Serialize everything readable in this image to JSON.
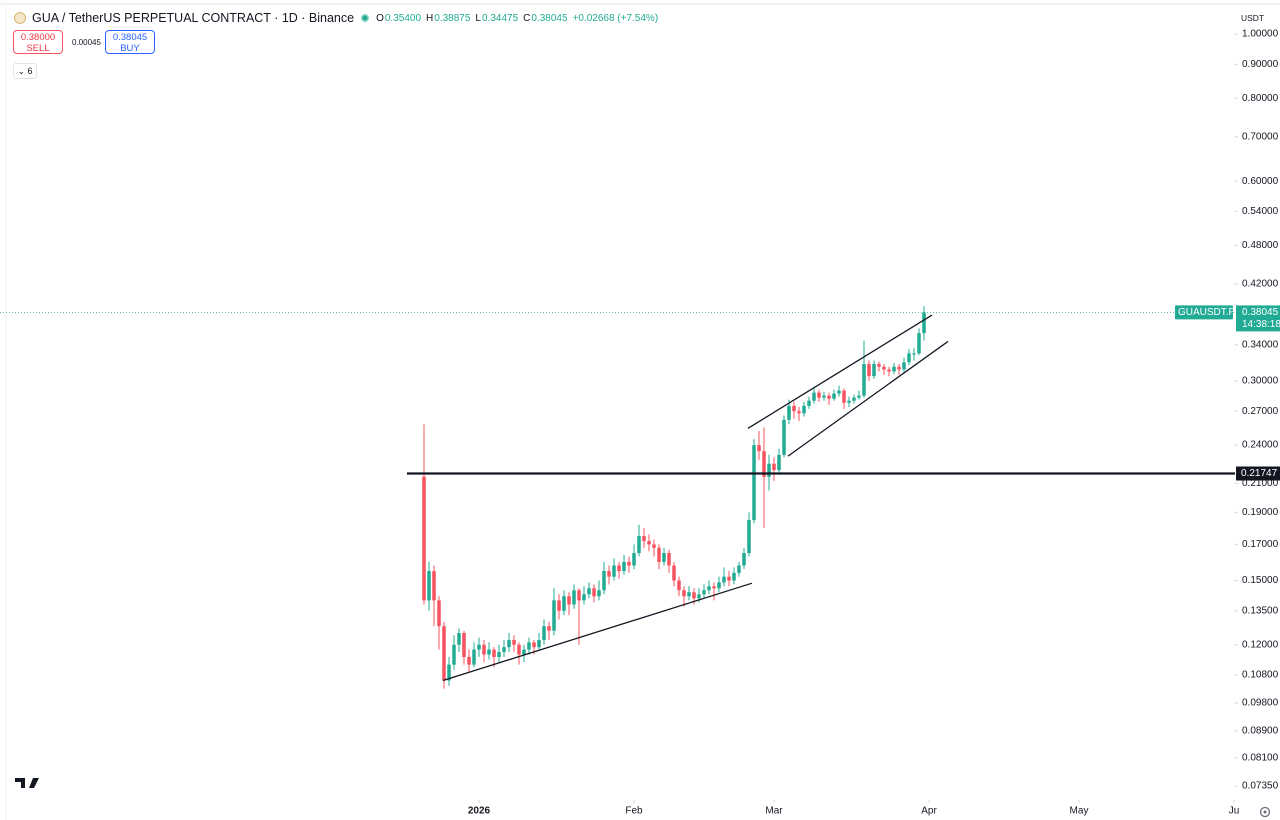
{
  "header": {
    "title": "GUA / TetherUS PERPETUAL CONTRACT · 1D · Binance",
    "open_label": "O",
    "open": "0.35400",
    "high_label": "H",
    "high": "0.38875",
    "low_label": "L",
    "low": "0.34475",
    "close_label": "C",
    "close": "0.38045",
    "change": "+0.02668 (+7.54%)",
    "sell_price": "0.38000",
    "sell": "SELL",
    "spread": "0.00045",
    "buy_price": "0.38045",
    "buy": "BUY",
    "indicators": "6"
  },
  "chart_data": {
    "type": "candlestick",
    "log_scale": true,
    "grid": false,
    "currency": "USDT",
    "up_color": "#22ab94",
    "down_color": "#f7525f",
    "open": [
      0.215,
      0.14,
      0.155,
      0.14,
      0.128,
      0.106,
      0.112,
      0.12,
      0.125,
      0.115,
      0.112,
      0.118,
      0.12,
      0.116,
      0.118,
      0.115,
      0.117,
      0.119,
      0.122,
      0.12,
      0.116,
      0.118,
      0.121,
      0.119,
      0.122,
      0.128,
      0.126,
      0.14,
      0.135,
      0.142,
      0.138,
      0.145,
      0.14,
      0.143,
      0.146,
      0.142,
      0.145,
      0.155,
      0.152,
      0.158,
      0.155,
      0.16,
      0.158,
      0.165,
      0.175,
      0.172,
      0.17,
      0.168,
      0.16,
      0.165,
      0.158,
      0.15,
      0.145,
      0.142,
      0.144,
      0.141,
      0.143,
      0.145,
      0.147,
      0.146,
      0.149,
      0.152,
      0.15,
      0.154,
      0.158,
      0.165,
      0.185,
      0.24,
      0.235,
      0.215,
      0.225,
      0.22,
      0.232,
      0.262,
      0.275,
      0.27,
      0.268,
      0.275,
      0.28,
      0.288,
      0.283,
      0.285,
      0.282,
      0.287,
      0.29,
      0.278,
      0.28,
      0.283,
      0.285,
      0.318,
      0.305,
      0.318,
      0.315,
      0.312,
      0.31,
      0.315,
      0.312,
      0.32,
      0.33,
      0.33,
      0.354
    ],
    "high": [
      0.258,
      0.16,
      0.158,
      0.142,
      0.13,
      0.115,
      0.124,
      0.127,
      0.126,
      0.118,
      0.121,
      0.123,
      0.122,
      0.121,
      0.119,
      0.12,
      0.122,
      0.125,
      0.124,
      0.121,
      0.12,
      0.123,
      0.122,
      0.125,
      0.131,
      0.13,
      0.146,
      0.143,
      0.145,
      0.144,
      0.148,
      0.146,
      0.147,
      0.149,
      0.148,
      0.15,
      0.16,
      0.158,
      0.162,
      0.16,
      0.164,
      0.163,
      0.17,
      0.182,
      0.18,
      0.176,
      0.173,
      0.17,
      0.168,
      0.167,
      0.16,
      0.152,
      0.147,
      0.147,
      0.146,
      0.146,
      0.148,
      0.15,
      0.149,
      0.152,
      0.157,
      0.155,
      0.157,
      0.16,
      0.168,
      0.19,
      0.245,
      0.252,
      0.255,
      0.232,
      0.23,
      0.237,
      0.266,
      0.281,
      0.279,
      0.274,
      0.279,
      0.284,
      0.294,
      0.291,
      0.289,
      0.288,
      0.291,
      0.295,
      0.292,
      0.284,
      0.286,
      0.29,
      0.345,
      0.322,
      0.322,
      0.321,
      0.318,
      0.315,
      0.319,
      0.318,
      0.325,
      0.335,
      0.336,
      0.36,
      0.38875
    ],
    "low": [
      0.138,
      0.135,
      0.128,
      0.118,
      0.103,
      0.104,
      0.11,
      0.117,
      0.112,
      0.109,
      0.111,
      0.115,
      0.113,
      0.114,
      0.111,
      0.113,
      0.115,
      0.117,
      0.117,
      0.112,
      0.113,
      0.116,
      0.116,
      0.118,
      0.12,
      0.122,
      0.124,
      0.131,
      0.133,
      0.133,
      0.136,
      0.12,
      0.138,
      0.141,
      0.139,
      0.14,
      0.143,
      0.148,
      0.15,
      0.151,
      0.153,
      0.154,
      0.156,
      0.163,
      0.168,
      0.166,
      0.163,
      0.156,
      0.158,
      0.154,
      0.147,
      0.142,
      0.137,
      0.14,
      0.138,
      0.139,
      0.141,
      0.143,
      0.14,
      0.144,
      0.147,
      0.147,
      0.148,
      0.152,
      0.156,
      0.163,
      0.183,
      0.228,
      0.18,
      0.205,
      0.212,
      0.218,
      0.23,
      0.258,
      0.263,
      0.261,
      0.265,
      0.272,
      0.277,
      0.279,
      0.28,
      0.276,
      0.28,
      0.284,
      0.272,
      0.274,
      0.277,
      0.281,
      0.283,
      0.3,
      0.302,
      0.31,
      0.306,
      0.305,
      0.307,
      0.306,
      0.309,
      0.317,
      0.322,
      0.328,
      0.34475
    ],
    "close": [
      0.14,
      0.155,
      0.14,
      0.128,
      0.106,
      0.112,
      0.12,
      0.125,
      0.115,
      0.112,
      0.118,
      0.12,
      0.116,
      0.118,
      0.115,
      0.117,
      0.119,
      0.122,
      0.12,
      0.116,
      0.118,
      0.121,
      0.119,
      0.122,
      0.128,
      0.126,
      0.14,
      0.135,
      0.142,
      0.138,
      0.145,
      0.14,
      0.143,
      0.146,
      0.142,
      0.145,
      0.155,
      0.152,
      0.158,
      0.155,
      0.16,
      0.158,
      0.165,
      0.175,
      0.172,
      0.17,
      0.168,
      0.16,
      0.165,
      0.158,
      0.15,
      0.145,
      0.142,
      0.144,
      0.141,
      0.143,
      0.145,
      0.147,
      0.146,
      0.149,
      0.152,
      0.15,
      0.154,
      0.158,
      0.165,
      0.185,
      0.24,
      0.235,
      0.215,
      0.225,
      0.22,
      0.232,
      0.262,
      0.275,
      0.27,
      0.268,
      0.275,
      0.28,
      0.288,
      0.283,
      0.285,
      0.282,
      0.287,
      0.29,
      0.278,
      0.28,
      0.283,
      0.285,
      0.318,
      0.305,
      0.318,
      0.315,
      0.312,
      0.31,
      0.315,
      0.312,
      0.32,
      0.33,
      0.33,
      0.354,
      0.38045
    ],
    "xlim": [
      -84.8,
      162.2
    ],
    "xticks": [
      {
        "value": 11,
        "label": "2026"
      },
      {
        "value": 42,
        "label": "Feb"
      },
      {
        "value": 70,
        "label": "Mar"
      },
      {
        "value": 101,
        "label": "Apr"
      },
      {
        "value": 131,
        "label": "May"
      },
      {
        "value": 162,
        "label": "Ju"
      }
    ],
    "ylim": [
      0.07,
      1.11
    ],
    "yticks": [
      {
        "value": 1,
        "label": "1.00000"
      },
      {
        "value": 0.9,
        "label": "0.90000"
      },
      {
        "value": 0.8,
        "label": "0.80000"
      },
      {
        "value": 0.7,
        "label": "0.70000"
      },
      {
        "value": 0.6,
        "label": "0.60000"
      },
      {
        "value": 0.54,
        "label": "0.54000"
      },
      {
        "value": 0.48,
        "label": "0.48000"
      },
      {
        "value": 0.42,
        "label": "0.42000"
      },
      {
        "value": 0.34,
        "label": "0.34000"
      },
      {
        "value": 0.3,
        "label": "0.30000"
      },
      {
        "value": 0.27,
        "label": "0.27000"
      },
      {
        "value": 0.24,
        "label": "0.24000"
      },
      {
        "value": 0.21,
        "label": "0.21000"
      },
      {
        "value": 0.19,
        "label": "0.19000"
      },
      {
        "value": 0.17,
        "label": "0.17000"
      },
      {
        "value": 0.15,
        "label": "0.15000"
      },
      {
        "value": 0.135,
        "label": "0.13500"
      },
      {
        "value": 0.12,
        "label": "0.12000"
      },
      {
        "value": 0.108,
        "label": "0.10800"
      },
      {
        "value": 0.098,
        "label": "0.09800"
      },
      {
        "value": 0.089,
        "label": "0.08900"
      },
      {
        "value": 0.081,
        "label": "0.08100"
      },
      {
        "value": 0.0735,
        "label": "0.07350"
      }
    ],
    "price_badge": {
      "symbol": "GUAUSDT.P",
      "price": "0.38045",
      "countdown": "14:38:18"
    },
    "hline": {
      "value": 0.21747,
      "label": "0.21747",
      "x_start": -3.4
    },
    "trendlines": [
      {
        "x": [
          3.8,
          65.6
        ],
        "y": [
          0.106,
          0.1486
        ]
      },
      {
        "x": [
          64.8,
          101.6
        ],
        "y": [
          0.2544,
          0.377
        ]
      },
      {
        "x": [
          72.8,
          104.8
        ],
        "y": [
          0.231,
          0.344
        ]
      }
    ]
  }
}
